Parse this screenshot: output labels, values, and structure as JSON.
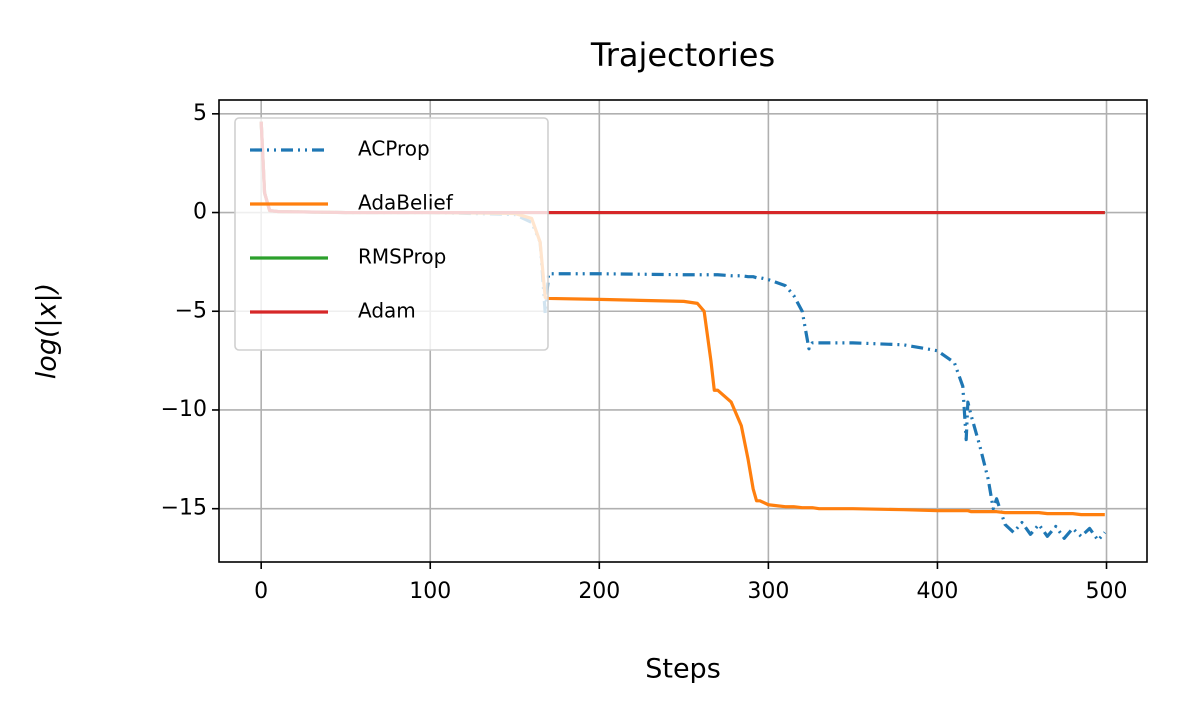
{
  "chart_data": {
    "type": "line",
    "title": "Trajectories",
    "xlabel": "Steps",
    "ylabel": "log(|x|)",
    "x": [
      0,
      2,
      5,
      10,
      50,
      100,
      150,
      160,
      165,
      168,
      170,
      200,
      250,
      258,
      262,
      266,
      268,
      270,
      278,
      284,
      288,
      291,
      293,
      295,
      300,
      310,
      315,
      320,
      324,
      326,
      330,
      350,
      380,
      400,
      410,
      415,
      417,
      418,
      420,
      425,
      430,
      433,
      435,
      440,
      445,
      450,
      455,
      460,
      465,
      470,
      475,
      480,
      485,
      490,
      495,
      499
    ],
    "series": [
      {
        "name": "ACProp",
        "color": "#1f77b4",
        "linestyle": "dashdotdot",
        "values": [
          4.6,
          1.0,
          0.1,
          0.05,
          0.0,
          0.0,
          -0.1,
          -0.5,
          -1.5,
          -5.1,
          -3.1,
          -3.1,
          -3.15,
          -3.15,
          -3.15,
          -3.15,
          -3.15,
          -3.15,
          -3.2,
          -3.2,
          -3.25,
          -3.25,
          -3.3,
          -3.3,
          -3.4,
          -3.7,
          -4.2,
          -5.0,
          -6.9,
          -6.6,
          -6.6,
          -6.6,
          -6.7,
          -7.0,
          -7.6,
          -8.8,
          -11.5,
          -9.6,
          -10.3,
          -11.8,
          -13.5,
          -15.0,
          -14.5,
          -15.8,
          -16.2,
          -15.7,
          -16.3,
          -15.8,
          -16.4,
          -15.9,
          -16.5,
          -16.0,
          -16.4,
          -16.0,
          -16.6,
          -16.2
        ]
      },
      {
        "name": "AdaBelief",
        "color": "#ff7f0e",
        "linestyle": "solid",
        "values": [
          4.6,
          1.0,
          0.1,
          0.05,
          0.0,
          0.0,
          -0.05,
          -0.3,
          -1.5,
          -4.3,
          -4.35,
          -4.4,
          -4.5,
          -4.6,
          -5.0,
          -7.5,
          -9.0,
          -9.0,
          -9.6,
          -10.8,
          -12.5,
          -14.0,
          -14.6,
          -14.6,
          -14.8,
          -14.9,
          -14.9,
          -14.95,
          -14.95,
          -14.95,
          -15.0,
          -15.0,
          -15.05,
          -15.1,
          -15.1,
          -15.1,
          -15.1,
          -15.1,
          -15.15,
          -15.15,
          -15.15,
          -15.15,
          -15.15,
          -15.2,
          -15.2,
          -15.2,
          -15.2,
          -15.2,
          -15.25,
          -15.25,
          -15.25,
          -15.25,
          -15.3,
          -15.3,
          -15.3,
          -15.3
        ]
      },
      {
        "name": "RMSProp",
        "color": "#2ca02c",
        "linestyle": "solid",
        "values": [
          4.6,
          1.0,
          0.1,
          0.05,
          0,
          0,
          0,
          0,
          0,
          0,
          0,
          0,
          0,
          0,
          0,
          0,
          0,
          0,
          0,
          0,
          0,
          0,
          0,
          0,
          0,
          0,
          0,
          0,
          0,
          0,
          0,
          0,
          0,
          0,
          0,
          0,
          0,
          0,
          0,
          0,
          0,
          0,
          0,
          0,
          0,
          0,
          0,
          0,
          0,
          0,
          0,
          0,
          0,
          0,
          0,
          0
        ]
      },
      {
        "name": "Adam",
        "color": "#d62728",
        "linestyle": "solid",
        "values": [
          4.6,
          1.0,
          0.1,
          0.05,
          0,
          0,
          0,
          0,
          0,
          0,
          0,
          0,
          0,
          0,
          0,
          0,
          0,
          0,
          0,
          0,
          0,
          0,
          0,
          0,
          0,
          0,
          0,
          0,
          0,
          0,
          0,
          0,
          0,
          0,
          0,
          0,
          0,
          0,
          0,
          0,
          0,
          0,
          0,
          0,
          0,
          0,
          0,
          0,
          0,
          0,
          0,
          0,
          0,
          0,
          0,
          0
        ]
      }
    ],
    "xlim": [
      -24.95,
      523.95
    ],
    "xticks": [
      0,
      100,
      200,
      300,
      400,
      500
    ],
    "ylim": [
      -17.7,
      5.7
    ],
    "yticks": [
      5,
      0,
      -5,
      -10,
      -15
    ],
    "grid": true,
    "legend": "upper left"
  }
}
